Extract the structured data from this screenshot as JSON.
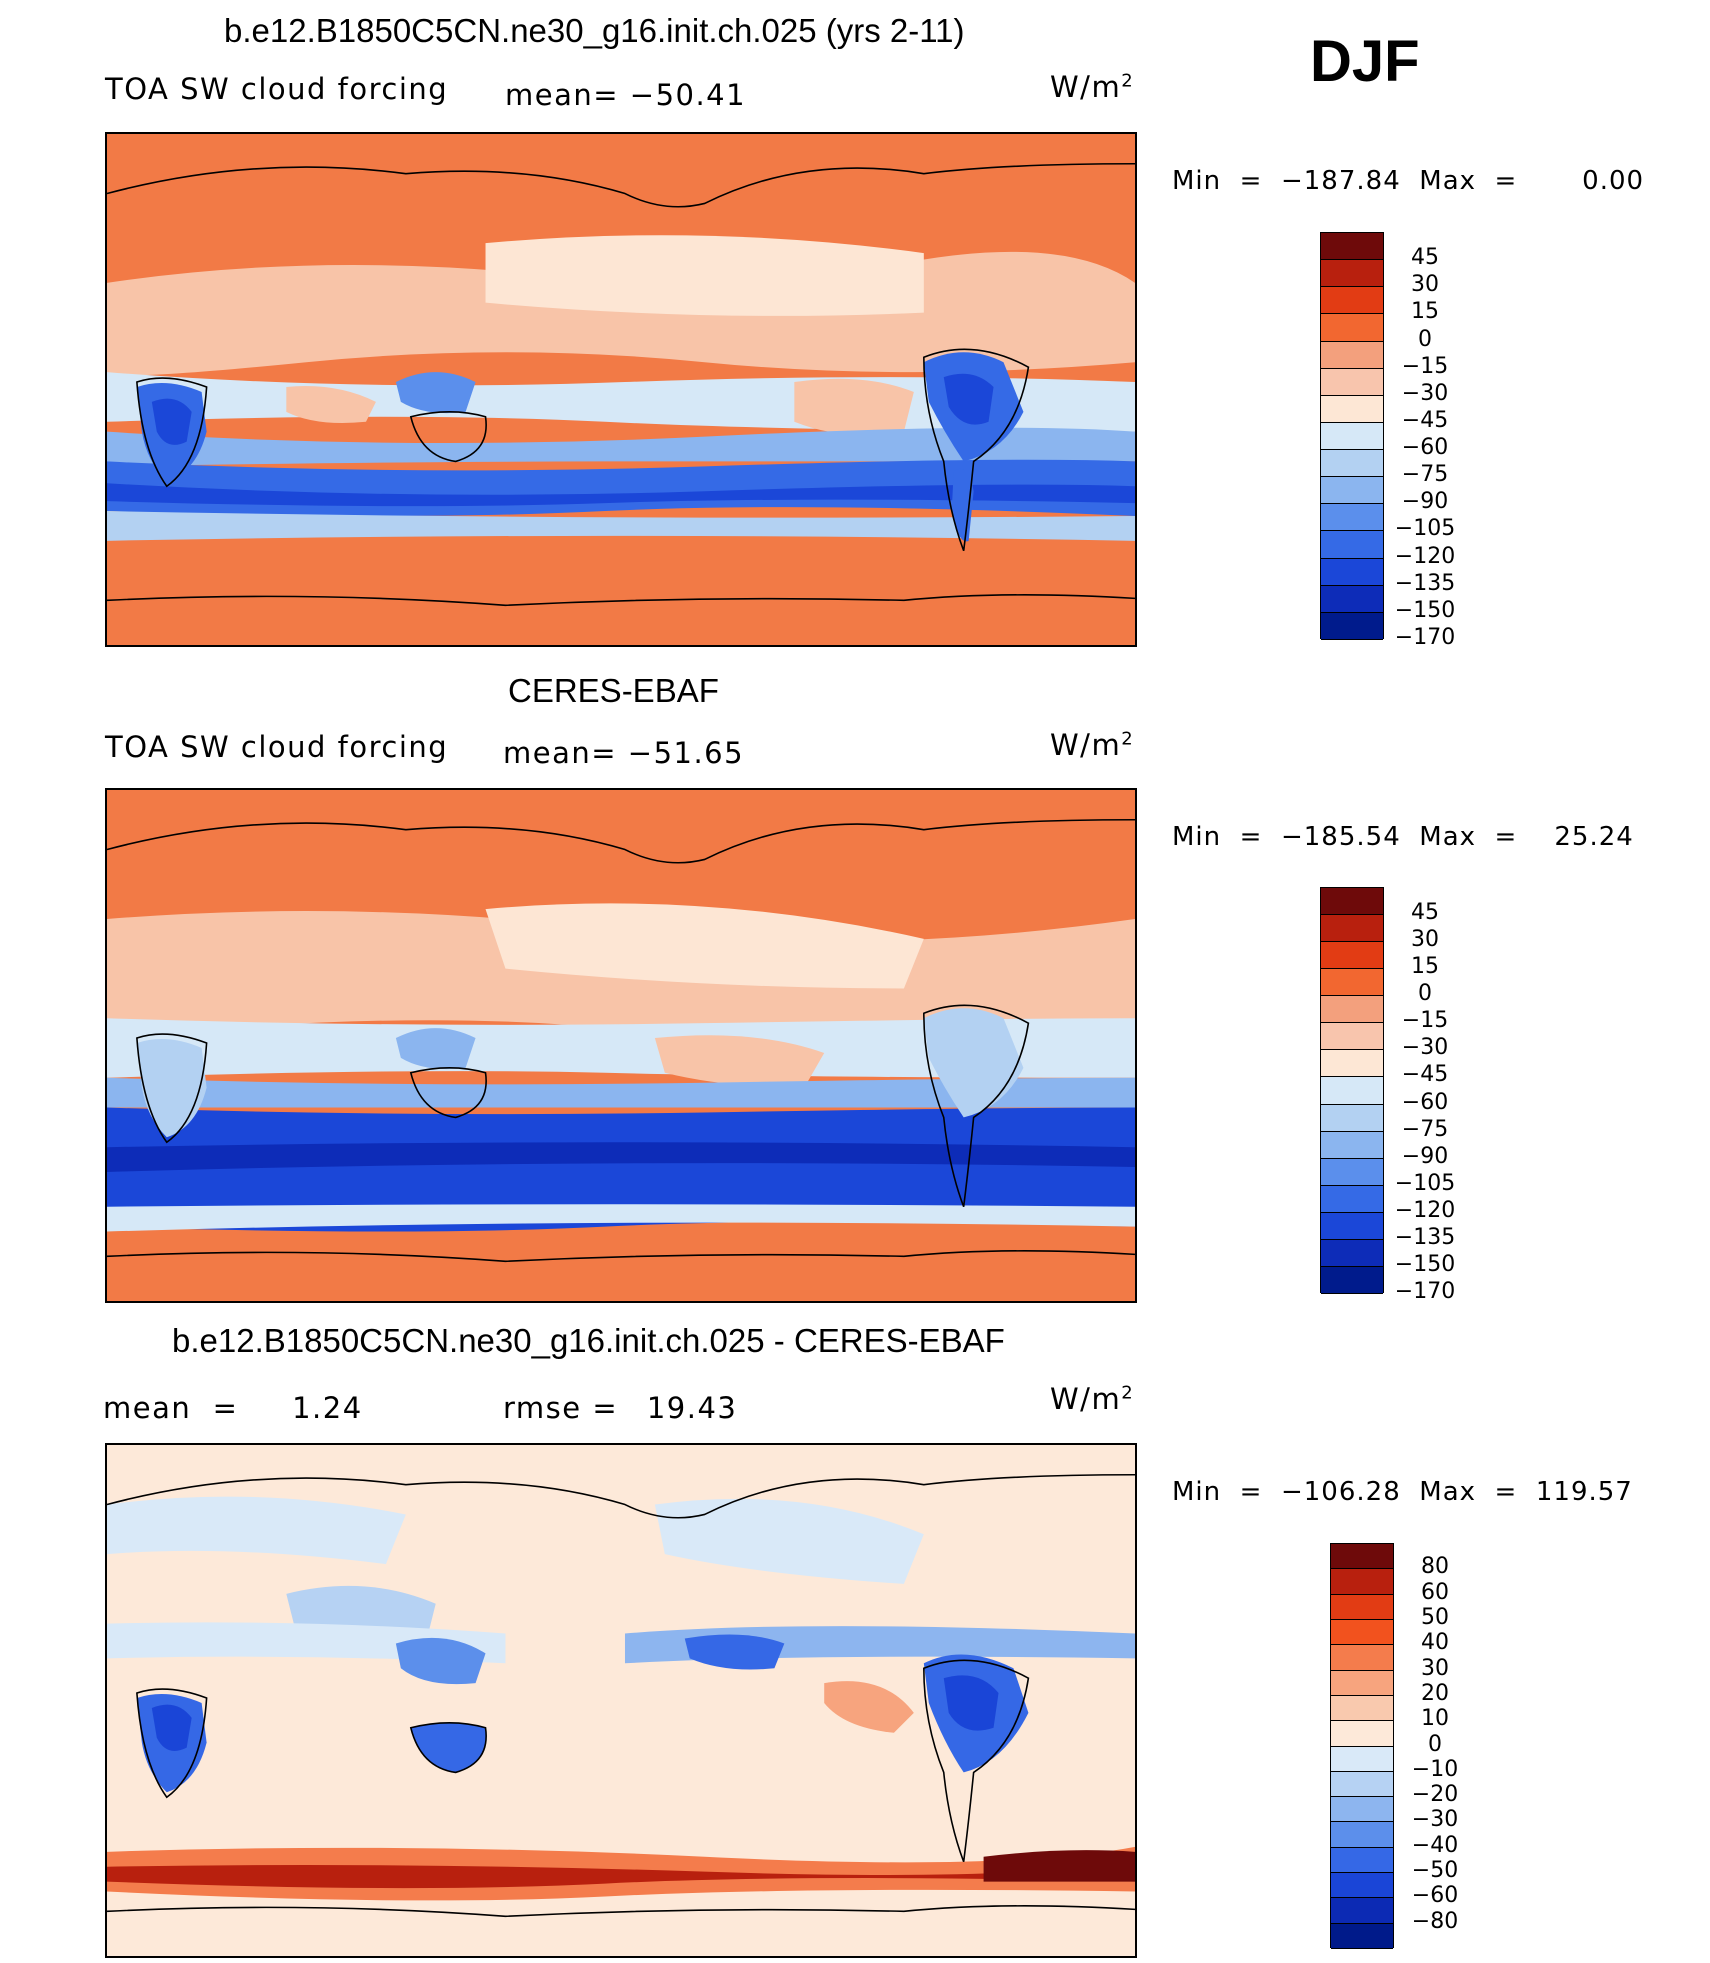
{
  "header": {
    "season": "DJF"
  },
  "panels": [
    {
      "title": "b.e12.B1850C5CN.ne30_g16.init.ch.025 (yrs 2-11)",
      "left_label": "TOA SW cloud forcing",
      "stat_label": "mean=",
      "stat_value": "−50.41",
      "units": "W/m",
      "units_sup": "2",
      "minmax": "Min  =  −187.84  Max  =       0.00",
      "colorbar": {
        "colors": [
          "#6e0a0a",
          "#b8200e",
          "#e23c14",
          "#f26730",
          "#f3a07d",
          "#f8c5ad",
          "#fde7d5",
          "#d6e8f7",
          "#b3d1f2",
          "#8bb5ef",
          "#5b8fec",
          "#356ae6",
          "#1b47d8",
          "#0d2cb8",
          "#001b8c"
        ],
        "labels": [
          "45",
          "30",
          "15",
          "0",
          "−15",
          "−30",
          "−45",
          "−60",
          "−75",
          "−90",
          "−105",
          "−120",
          "−135",
          "−150",
          "−170"
        ]
      }
    },
    {
      "title": "CERES-EBAF",
      "left_label": "TOA SW cloud forcing",
      "stat_label": "mean=",
      "stat_value": "−51.65",
      "units": "W/m",
      "units_sup": "2",
      "minmax": "Min  =  −185.54  Max  =    25.24",
      "colorbar": {
        "colors": [
          "#6e0a0a",
          "#b8200e",
          "#e23c14",
          "#f26730",
          "#f3a07d",
          "#f8c5ad",
          "#fde7d5",
          "#d6e8f7",
          "#b3d1f2",
          "#8bb5ef",
          "#5b8fec",
          "#356ae6",
          "#1b47d8",
          "#0d2cb8",
          "#001b8c"
        ],
        "labels": [
          "45",
          "30",
          "15",
          "0",
          "−15",
          "−30",
          "−45",
          "−60",
          "−75",
          "−90",
          "−105",
          "−120",
          "−135",
          "−150",
          "−170"
        ]
      }
    },
    {
      "title": "b.e12.B1850C5CN.ne30_g16.init.ch.025 - CERES-EBAF",
      "left_label": "mean  =     1.24",
      "stat_label": "rmse  =",
      "stat_value": "19.43",
      "units": "W/m",
      "units_sup": "2",
      "minmax": "Min  =  −106.28  Max  =  119.57",
      "colorbar": {
        "colors": [
          "#6e0a0a",
          "#b8200e",
          "#e23c14",
          "#f2521e",
          "#f47c4c",
          "#f7a47e",
          "#f9c9ae",
          "#fde9d9",
          "#d9e9f8",
          "#b6d2f3",
          "#8db5ef",
          "#5c8feb",
          "#3568e6",
          "#1a45d7",
          "#0c2ab4",
          "#001a8a"
        ],
        "labels": [
          "80",
          "60",
          "50",
          "40",
          "30",
          "20",
          "10",
          "0",
          "−10",
          "−20",
          "−30",
          "−40",
          "−50",
          "−60",
          "−80"
        ]
      }
    }
  ]
}
